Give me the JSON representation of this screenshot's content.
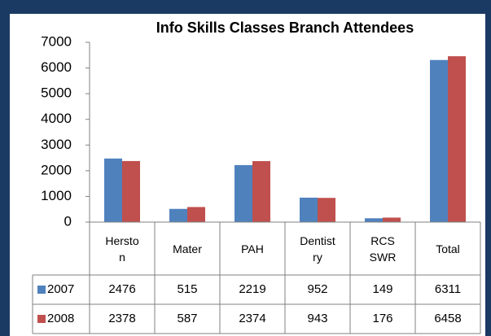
{
  "chart_data": {
    "type": "bar",
    "title": "Info Skills Classes Branch Attendees",
    "categories": [
      "Herston",
      "Mater",
      "PAH",
      "Dentistry",
      "RCS SWR",
      "Total"
    ],
    "series": [
      {
        "name": "2007",
        "color": "#4f81bd",
        "values": [
          2476,
          515,
          2219,
          952,
          149,
          6311
        ]
      },
      {
        "name": "2008",
        "color": "#c0504d",
        "values": [
          2378,
          587,
          2374,
          943,
          176,
          6458
        ]
      }
    ],
    "ylim": [
      0,
      7000
    ],
    "yticks": [
      0,
      1000,
      2000,
      3000,
      4000,
      5000,
      6000,
      7000
    ],
    "grid": false
  }
}
